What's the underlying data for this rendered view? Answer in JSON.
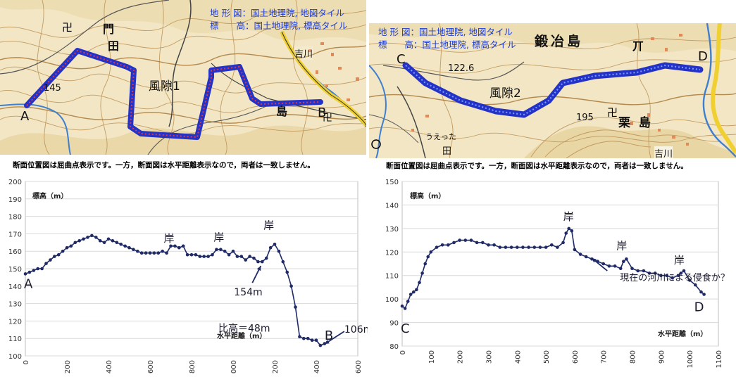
{
  "map1": {
    "credit_line1": "地 形 図：国土地理院, 地図タイル",
    "credit_line2": "標　　高：国土地理院, 標高タイル",
    "section_label": "風隙1",
    "start_label": "A",
    "end_label": "B",
    "place_name": "吉川",
    "kanji_labels": [
      "門",
      "田",
      "島"
    ],
    "contour_label": "145",
    "caption": "断面位置図は屈曲点表示です。一方，断面図は水平距離表示なので，両者は一致しません。"
  },
  "map2": {
    "credit_line1": "地 形 図：国土地理院, 地図タイル",
    "credit_line2": "標　　高：国土地理院, 標高タイル",
    "section_label": "風隙2",
    "start_label": "C",
    "end_label": "D",
    "place_name": "吉川",
    "area_name": "鍛冶島",
    "area_name2": "栗 島",
    "spot_heights": [
      "122.6",
      "195"
    ],
    "small_labels": [
      "うえった",
      "田"
    ],
    "caption": "断面位置図は屈曲点表示です。一方，断面図は水平距離表示なので，両者は一致しません。"
  },
  "chart_data": [
    {
      "type": "line",
      "ylabel": "標高（m）",
      "xlabel": "水平距離（m）",
      "xlim": [
        0,
        1600
      ],
      "ylim": [
        100,
        200
      ],
      "xticks": [
        0,
        200,
        400,
        600,
        800,
        1000,
        1200,
        1400,
        1600
      ],
      "yticks": [
        100,
        110,
        120,
        130,
        140,
        150,
        160,
        170,
        180,
        190,
        200
      ],
      "x": [
        0,
        20,
        40,
        60,
        80,
        100,
        120,
        140,
        160,
        180,
        200,
        220,
        240,
        260,
        280,
        300,
        320,
        340,
        360,
        380,
        400,
        420,
        440,
        460,
        480,
        500,
        520,
        540,
        560,
        580,
        600,
        620,
        640,
        660,
        680,
        700,
        720,
        740,
        760,
        780,
        800,
        820,
        840,
        860,
        880,
        900,
        920,
        940,
        960,
        980,
        1000,
        1020,
        1040,
        1060,
        1080,
        1100,
        1120,
        1140,
        1160,
        1180,
        1200,
        1220,
        1240,
        1260,
        1280,
        1300,
        1320,
        1340,
        1360,
        1380,
        1400,
        1420,
        1440
      ],
      "y": [
        147,
        148,
        149,
        150,
        150,
        153,
        155,
        157,
        158,
        160,
        162,
        163,
        165,
        166,
        167,
        168,
        169,
        168,
        166,
        165,
        167,
        166,
        165,
        164,
        163,
        162,
        161,
        160,
        159,
        159,
        159,
        159,
        159,
        160,
        159,
        163,
        163,
        162,
        163,
        158,
        158,
        158,
        157,
        157,
        157,
        158,
        161,
        161,
        160,
        158,
        160,
        157,
        157,
        155,
        157,
        156,
        154,
        154,
        156,
        162,
        164,
        160,
        154,
        148,
        140,
        128,
        111,
        110,
        110,
        109,
        109,
        106,
        107
      ],
      "annotations": [
        {
          "text": "A",
          "x": 0,
          "y": 147
        },
        {
          "text": "岸",
          "x": 700,
          "y": 163
        },
        {
          "text": "岸",
          "x": 940,
          "y": 161
        },
        {
          "text": "岸",
          "x": 1180,
          "y": 164
        },
        {
          "text": "154m",
          "x": 1140,
          "y": 154
        },
        {
          "text": "比高＝48m",
          "x": 1200,
          "y": 130
        },
        {
          "text": "B",
          "x": 1420,
          "y": 106
        },
        {
          "text": "106m",
          "x": 1420,
          "y": 106
        }
      ]
    },
    {
      "type": "line",
      "ylabel": "標高（m）",
      "xlabel": "水平距離（m）",
      "xlim": [
        0,
        1100
      ],
      "ylim": [
        80,
        150
      ],
      "xticks": [
        0,
        100,
        200,
        300,
        400,
        500,
        600,
        700,
        800,
        900,
        1000,
        1100
      ],
      "yticks": [
        80,
        90,
        100,
        110,
        120,
        130,
        140,
        150
      ],
      "x": [
        0,
        10,
        20,
        30,
        40,
        50,
        60,
        70,
        80,
        90,
        100,
        120,
        140,
        160,
        180,
        200,
        220,
        240,
        260,
        280,
        300,
        320,
        340,
        360,
        380,
        400,
        420,
        440,
        460,
        480,
        500,
        520,
        540,
        560,
        570,
        580,
        590,
        600,
        620,
        640,
        660,
        680,
        700,
        720,
        740,
        760,
        770,
        780,
        800,
        820,
        840,
        860,
        880,
        900,
        920,
        940,
        960,
        970,
        980,
        1000,
        1020,
        1040,
        1050
      ],
      "y": [
        97,
        96,
        99,
        102,
        103,
        104,
        107,
        111,
        115,
        118,
        120,
        122,
        123,
        123,
        124,
        125,
        125,
        125,
        124,
        124,
        123,
        123,
        122,
        122,
        122,
        122,
        122,
        122,
        122,
        122,
        122,
        123,
        122,
        124,
        128,
        130,
        129,
        121,
        119,
        118,
        117,
        116,
        115,
        114,
        114,
        113,
        116,
        117,
        113,
        112,
        112,
        111,
        111,
        110,
        110,
        109,
        110,
        111,
        112,
        108,
        106,
        103,
        102
      ],
      "annotations": [
        {
          "text": "C",
          "x": 0,
          "y": 97
        },
        {
          "text": "岸",
          "x": 580,
          "y": 130
        },
        {
          "text": "岸",
          "x": 770,
          "y": 117
        },
        {
          "text": "岸",
          "x": 970,
          "y": 112
        },
        {
          "text": "現在の河川による侵食か？",
          "x": 640,
          "y": 118
        },
        {
          "text": "D",
          "x": 1050,
          "y": 102
        }
      ]
    }
  ]
}
